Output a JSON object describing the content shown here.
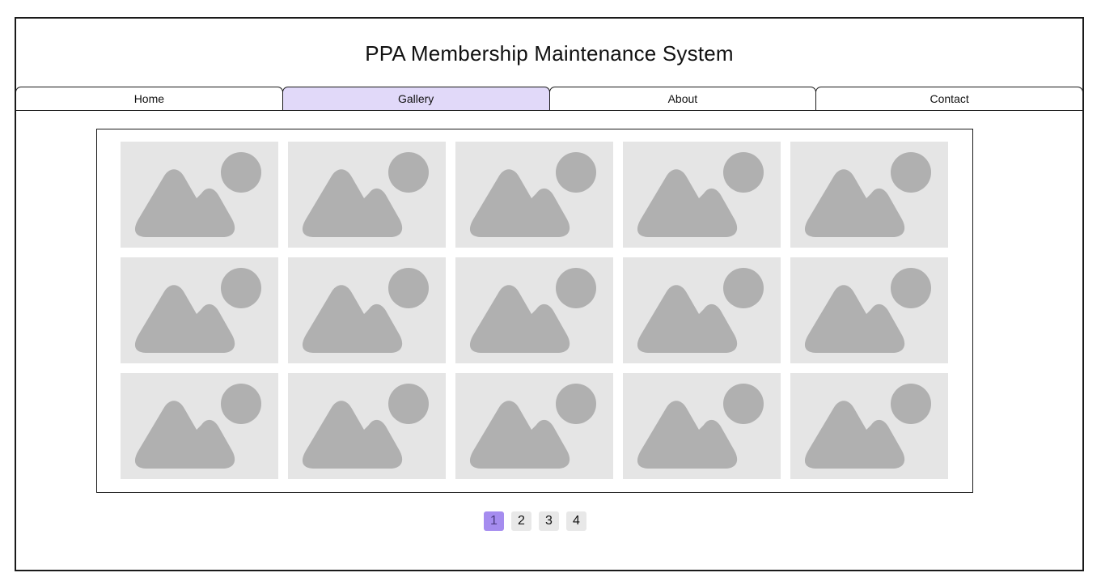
{
  "app": {
    "title": "PPA Membership Maintenance System"
  },
  "nav": {
    "tabs": [
      {
        "label": "Home",
        "active": false
      },
      {
        "label": "Gallery",
        "active": true
      },
      {
        "label": "About",
        "active": false
      },
      {
        "label": "Contact",
        "active": false
      }
    ]
  },
  "gallery": {
    "rows": 3,
    "columns": 5,
    "placeholder_icon": "image-placeholder-icon",
    "colors": {
      "tile": "#e5e5e5",
      "icon": "#b0b0b0"
    }
  },
  "pagination": {
    "pages": [
      "1",
      "2",
      "3",
      "4"
    ],
    "current": "1",
    "colors": {
      "active": "#a58cef",
      "inactive": "#e8e8e8"
    }
  }
}
